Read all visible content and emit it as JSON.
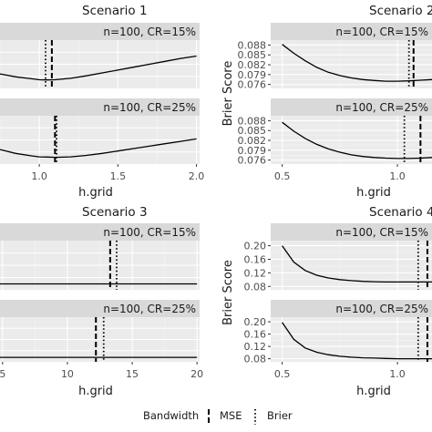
{
  "chart_data": [
    {
      "type": "line",
      "title": "Scenario 1",
      "xlabel": "h.grid",
      "ylabel": "",
      "x_ticks": [
        1.0,
        1.5,
        2.0
      ],
      "x_tick_labels": [
        "1.0",
        "1.5",
        "2.0"
      ],
      "y_ticks": [],
      "panels": [
        {
          "strip": "n=100, CR=15%",
          "xlim": [
            0.75,
            2.02
          ],
          "ylim": [
            0.0,
            1.0
          ],
          "x": [
            0.75,
            0.85,
            0.95,
            1.0,
            1.05,
            1.1,
            1.2,
            1.3,
            1.4,
            1.5,
            1.6,
            1.7,
            1.8,
            1.9,
            2.0
          ],
          "y": [
            0.3,
            0.24,
            0.2,
            0.18,
            0.175,
            0.18,
            0.21,
            0.26,
            0.32,
            0.38,
            0.44,
            0.5,
            0.56,
            0.62,
            0.67
          ],
          "mse_bandwidth": 1.08,
          "brier_bandwidth": 1.04
        },
        {
          "strip": "n=100, CR=25%",
          "xlim": [
            0.75,
            2.02
          ],
          "ylim": [
            0.0,
            1.0
          ],
          "x": [
            0.75,
            0.85,
            0.95,
            1.0,
            1.05,
            1.1,
            1.2,
            1.3,
            1.4,
            1.5,
            1.6,
            1.7,
            1.8,
            1.9,
            2.0
          ],
          "y": [
            0.3,
            0.22,
            0.17,
            0.15,
            0.145,
            0.14,
            0.15,
            0.18,
            0.22,
            0.27,
            0.32,
            0.37,
            0.42,
            0.47,
            0.52
          ],
          "mse_bandwidth": 1.1,
          "brier_bandwidth": 1.11
        }
      ]
    },
    {
      "type": "line",
      "title": "Scenario 2",
      "xlabel": "h.grid",
      "ylabel": "Brier Score",
      "x_ticks": [
        0.5,
        1.0
      ],
      "x_tick_labels": [
        "0.5",
        "1.0"
      ],
      "y_ticks": [
        0.076,
        0.079,
        0.082,
        0.085,
        0.088
      ],
      "y_tick_labels": [
        "0.076",
        "0.079",
        "0.082",
        "0.085",
        "0.088"
      ],
      "panels": [
        {
          "strip": "n=100, CR=15%",
          "xlim": [
            0.45,
            1.15
          ],
          "ylim": [
            0.0748,
            0.0895
          ],
          "x": [
            0.5,
            0.55,
            0.6,
            0.65,
            0.7,
            0.75,
            0.8,
            0.85,
            0.9,
            0.95,
            1.0,
            1.05,
            1.1,
            1.15
          ],
          "y": [
            0.0882,
            0.0855,
            0.0832,
            0.0812,
            0.0797,
            0.0787,
            0.078,
            0.0775,
            0.0772,
            0.077,
            0.077,
            0.0771,
            0.0773,
            0.0775
          ],
          "mse_bandwidth": 1.07,
          "brier_bandwidth": 1.05
        },
        {
          "strip": "n=100, CR=25%",
          "xlim": [
            0.45,
            1.15
          ],
          "ylim": [
            0.0748,
            0.0895
          ],
          "x": [
            0.5,
            0.55,
            0.6,
            0.65,
            0.7,
            0.75,
            0.8,
            0.85,
            0.9,
            0.95,
            1.0,
            1.05,
            1.1,
            1.15
          ],
          "y": [
            0.0875,
            0.0848,
            0.0826,
            0.0808,
            0.0794,
            0.0784,
            0.0776,
            0.0771,
            0.0768,
            0.0766,
            0.0765,
            0.0765,
            0.0766,
            0.0768
          ],
          "mse_bandwidth": 1.1,
          "brier_bandwidth": 1.03
        }
      ]
    },
    {
      "type": "line",
      "title": "Scenario 3",
      "xlabel": "h.grid",
      "ylabel": "",
      "x_ticks": [
        5,
        10,
        15,
        20
      ],
      "x_tick_labels": [
        "5",
        "10",
        "15",
        "20"
      ],
      "y_ticks": [],
      "panels": [
        {
          "strip": "n=100, CR=15%",
          "xlim": [
            4.8,
            20.2
          ],
          "ylim": [
            0.0,
            1.0
          ],
          "x": [
            4.8,
            8,
            12,
            16,
            20
          ],
          "y": [
            0.12,
            0.12,
            0.12,
            0.12,
            0.12
          ],
          "mse_bandwidth": 13.3,
          "brier_bandwidth": 13.8
        },
        {
          "strip": "n=100, CR=25%",
          "xlim": [
            4.8,
            20.2
          ],
          "ylim": [
            0.0,
            1.0
          ],
          "x": [
            4.8,
            8,
            12,
            16,
            20
          ],
          "y": [
            0.1,
            0.1,
            0.1,
            0.1,
            0.1
          ],
          "mse_bandwidth": 12.2,
          "brier_bandwidth": 12.8
        }
      ]
    },
    {
      "type": "line",
      "title": "Scenario 4",
      "xlabel": "h.grid",
      "ylabel": "Brier Score",
      "x_ticks": [
        0.5,
        1.0
      ],
      "x_tick_labels": [
        "0.5",
        "1.0"
      ],
      "y_ticks": [
        0.08,
        0.12,
        0.16,
        0.2
      ],
      "y_tick_labels": [
        "0.08",
        "0.12",
        "0.16",
        "0.20"
      ],
      "panels": [
        {
          "strip": "n=100, CR=15%",
          "xlim": [
            0.45,
            1.15
          ],
          "ylim": [
            0.07,
            0.215
          ],
          "x": [
            0.5,
            0.55,
            0.6,
            0.65,
            0.7,
            0.75,
            0.8,
            0.85,
            0.9,
            0.95,
            1.0,
            1.05,
            1.1,
            1.15
          ],
          "y": [
            0.2,
            0.152,
            0.127,
            0.113,
            0.105,
            0.1,
            0.097,
            0.095,
            0.094,
            0.093,
            0.093,
            0.093,
            0.093,
            0.093
          ],
          "mse_bandwidth": 1.13,
          "brier_bandwidth": 1.09
        },
        {
          "strip": "n=100, CR=25%",
          "xlim": [
            0.45,
            1.15
          ],
          "ylim": [
            0.07,
            0.215
          ],
          "x": [
            0.5,
            0.55,
            0.6,
            0.65,
            0.7,
            0.75,
            0.8,
            0.85,
            0.9,
            0.95,
            1.0,
            1.05,
            1.1,
            1.15
          ],
          "y": [
            0.198,
            0.143,
            0.115,
            0.101,
            0.093,
            0.088,
            0.085,
            0.083,
            0.082,
            0.081,
            0.08,
            0.08,
            0.08,
            0.08
          ],
          "mse_bandwidth": 1.13,
          "brier_bandwidth": 1.09
        }
      ]
    }
  ],
  "legend": {
    "title": "Bandwidth",
    "items": [
      {
        "label": "MSE",
        "linetype": "dashed"
      },
      {
        "label": "Brier",
        "linetype": "dotted"
      }
    ],
    "position": "bottom"
  }
}
